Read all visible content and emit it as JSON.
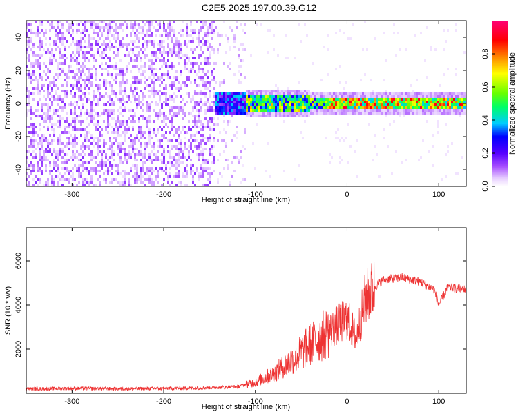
{
  "title": "C2E5.2025.197.00.39.G12",
  "chart_data": [
    {
      "type": "heatmap",
      "xlabel": "Height of straight line (km)",
      "ylabel": "Frequency (Hz)",
      "xlim": [
        -350,
        130
      ],
      "ylim": [
        -50,
        50
      ],
      "x_ticks": [
        -300,
        -200,
        -100,
        0,
        100
      ],
      "y_ticks": [
        -40,
        -20,
        0,
        20,
        40
      ],
      "colorbar": {
        "label": "Normalized spectral amplitude",
        "range": [
          0.0,
          1.0
        ],
        "ticks": [
          "0.0",
          "0.2",
          "0.4",
          "0.6",
          "0.8"
        ],
        "tick_values": [
          0.0,
          0.2,
          0.4,
          0.6,
          0.8
        ],
        "colormap": [
          "#ffffff",
          "#e6ccff",
          "#a64dff",
          "#5500ff",
          "#0000ff",
          "#00ccff",
          "#00ff66",
          "#66ff00",
          "#ffff00",
          "#ff8800",
          "#ff0000",
          "#ff0077"
        ]
      },
      "regions": [
        {
          "x_range": [
            -350,
            -150
          ],
          "description": "broadband noise, low amplitude"
        },
        {
          "x_range": [
            -150,
            130
          ],
          "center_frequency": 0,
          "description": "carrier line at 0 Hz"
        }
      ]
    },
    {
      "type": "line",
      "xlabel": "Height of straight line (km)",
      "ylabel": "SNR (10 * v/v)",
      "xlim": [
        -350,
        130
      ],
      "ylim": [
        0,
        7500
      ],
      "x_ticks": [
        -300,
        -200,
        -100,
        0,
        100
      ],
      "y_ticks": [
        2000,
        4000,
        6000
      ],
      "series": [
        {
          "color": "#ee3333",
          "x": [
            -350,
            -300,
            -250,
            -200,
            -150,
            -120,
            -100,
            -80,
            -60,
            -40,
            -20,
            0,
            10,
            20,
            30,
            40,
            60,
            80,
            95,
            100,
            110,
            130
          ],
          "y": [
            200,
            220,
            200,
            220,
            250,
            300,
            500,
            900,
            1500,
            2200,
            2800,
            3400,
            2500,
            4300,
            4800,
            5150,
            5250,
            5050,
            4700,
            4000,
            4800,
            4700
          ]
        }
      ]
    }
  ]
}
